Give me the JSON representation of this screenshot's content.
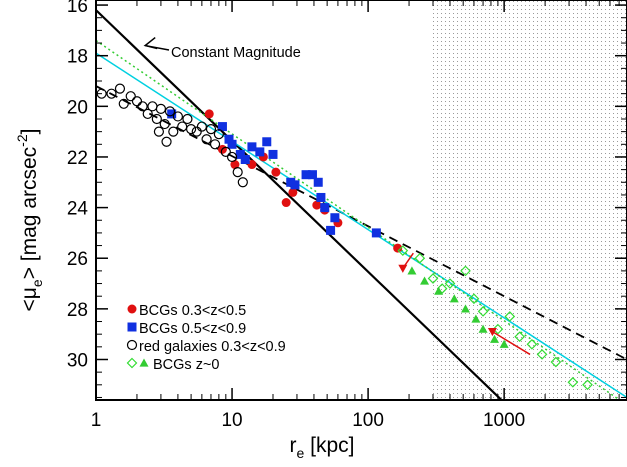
{
  "chart_data": {
    "type": "scatter",
    "xscale": "log",
    "xlim": [
      1,
      8000
    ],
    "ylim": [
      31.6,
      15.8
    ],
    "y_inverted": true,
    "xlabel_main": "r",
    "xlabel_sub": "e",
    "xlabel_rest": " [kpc]",
    "ylabel_pre": "<μ",
    "ylabel_sub": "e",
    "ylabel_mid": "> [mag arcsec",
    "ylabel_sup": "-2",
    "ylabel_post": "]",
    "x_ticks": [
      {
        "value": 1,
        "label": "1"
      },
      {
        "value": 10,
        "label": "10"
      },
      {
        "value": 100,
        "label": "100"
      },
      {
        "value": 1000,
        "label": "1000"
      }
    ],
    "y_ticks": [
      {
        "value": 16,
        "label": "16"
      },
      {
        "value": 18,
        "label": "18"
      },
      {
        "value": 20,
        "label": "20"
      },
      {
        "value": 22,
        "label": "22"
      },
      {
        "value": 24,
        "label": "24"
      },
      {
        "value": 26,
        "label": "26"
      },
      {
        "value": 28,
        "label": "28"
      },
      {
        "value": 30,
        "label": "30"
      }
    ],
    "shaded_region": {
      "x_from": 300,
      "x_to": 8000
    },
    "annotation": {
      "text": "Constant Magnitude",
      "arrow_tip": [
        2.3,
        17.6
      ]
    },
    "lines": [
      {
        "name": "constant-magnitude",
        "color": "#000000",
        "style": "solid",
        "x": [
          1,
          1000
        ],
        "y": [
          16.2,
          31.7
        ]
      },
      {
        "name": "red-galaxies-fit",
        "color": "#000000",
        "style": "dashed",
        "x": [
          1,
          8000
        ],
        "y": [
          19.2,
          30.0
        ]
      },
      {
        "name": "bcg-fit-cyan",
        "color": "#00d0e0",
        "style": "solid",
        "x": [
          1,
          8000
        ],
        "y": [
          17.9,
          31.5
        ]
      },
      {
        "name": "bcg-fit-green",
        "color": "#33cc33",
        "style": "dotted",
        "x": [
          1,
          8000
        ],
        "y": [
          17.4,
          31.8
        ]
      }
    ],
    "series": [
      {
        "name": "BCGs 0.3<z<0.5",
        "marker": "circle-filled",
        "color": "#e01010",
        "points": [
          [
            6.8,
            20.3
          ],
          [
            8.5,
            21.7
          ],
          [
            10.5,
            22.3
          ],
          [
            14,
            22.3
          ],
          [
            17,
            22.0
          ],
          [
            21,
            22.6
          ],
          [
            25,
            23.8
          ],
          [
            28,
            23.4
          ],
          [
            42,
            23.9
          ],
          [
            48,
            24.1
          ],
          [
            60,
            24.6
          ],
          [
            165,
            25.6
          ]
        ]
      },
      {
        "name": "BCGs 0.5<z<0.9",
        "marker": "square-filled",
        "color": "#1030e0",
        "points": [
          [
            3.6,
            20.3
          ],
          [
            8.5,
            20.8
          ],
          [
            9.5,
            21.3
          ],
          [
            10,
            21.5
          ],
          [
            11.5,
            21.9
          ],
          [
            12.5,
            22.1
          ],
          [
            14,
            21.6
          ],
          [
            16,
            21.8
          ],
          [
            18,
            21.4
          ],
          [
            20,
            21.9
          ],
          [
            27,
            23.0
          ],
          [
            29,
            23.1
          ],
          [
            35,
            22.7
          ],
          [
            39,
            22.7
          ],
          [
            43,
            23.0
          ],
          [
            45,
            23.6
          ],
          [
            48,
            24.0
          ],
          [
            53,
            24.9
          ],
          [
            57,
            24.4
          ],
          [
            115,
            25.0
          ]
        ]
      },
      {
        "name": "red galaxies 0.3<z<0.9",
        "marker": "circle-open",
        "color": "#000000",
        "points": [
          [
            1.1,
            19.5
          ],
          [
            1.3,
            19.5
          ],
          [
            1.5,
            19.3
          ],
          [
            1.6,
            19.9
          ],
          [
            1.8,
            19.6
          ],
          [
            2.0,
            19.8
          ],
          [
            2.2,
            20.0
          ],
          [
            2.4,
            20.3
          ],
          [
            2.6,
            20.0
          ],
          [
            2.8,
            20.5
          ],
          [
            3.0,
            20.1
          ],
          [
            3.2,
            20.7
          ],
          [
            3.5,
            20.2
          ],
          [
            3.7,
            21.0
          ],
          [
            4.0,
            20.4
          ],
          [
            4.3,
            20.8
          ],
          [
            4.7,
            20.5
          ],
          [
            5.0,
            20.9
          ],
          [
            5.5,
            21.0
          ],
          [
            6.0,
            20.8
          ],
          [
            6.5,
            21.3
          ],
          [
            7.0,
            20.9
          ],
          [
            7.5,
            21.5
          ],
          [
            8.0,
            21.1
          ],
          [
            9.0,
            21.8
          ],
          [
            10.0,
            22.0
          ],
          [
            11.0,
            22.6
          ],
          [
            12.0,
            23.0
          ],
          [
            3.3,
            21.4
          ],
          [
            2.9,
            21.0
          ]
        ]
      },
      {
        "name": "BCGs z~0",
        "marker": "diamond-open",
        "color": "#33dd33",
        "points": [
          [
            180,
            25.7
          ],
          [
            240,
            26.0
          ],
          [
            300,
            26.8
          ],
          [
            350,
            27.2
          ],
          [
            400,
            27.0
          ],
          [
            520,
            26.5
          ],
          [
            600,
            27.6
          ],
          [
            700,
            28.1
          ],
          [
            900,
            28.8
          ],
          [
            1100,
            28.3
          ],
          [
            1300,
            29.1
          ],
          [
            1600,
            29.4
          ],
          [
            1900,
            29.8
          ],
          [
            2400,
            30.1
          ],
          [
            3200,
            30.9
          ],
          [
            4100,
            31.0
          ]
        ]
      },
      {
        "name": "BCGs z~0 (filled)",
        "marker": "triangle-filled",
        "color": "#33cc33",
        "points": [
          [
            210,
            26.5
          ],
          [
            260,
            26.9
          ],
          [
            330,
            27.3
          ],
          [
            430,
            27.6
          ],
          [
            520,
            28.0
          ],
          [
            620,
            28.4
          ],
          [
            700,
            28.8
          ],
          [
            850,
            29.2
          ],
          [
            1000,
            29.4
          ]
        ]
      },
      {
        "name": "red-down-triangles",
        "marker": "triangle-down-filled",
        "color": "#e01010",
        "points": [
          [
            180,
            26.4
          ],
          [
            820,
            28.9
          ]
        ]
      }
    ],
    "legend": {
      "placement": "bottom-left",
      "entries": [
        {
          "text": "BCGs 0.3<z<0.5",
          "symbols": [
            "circle-filled"
          ],
          "colors": [
            "#e01010"
          ]
        },
        {
          "text": "BCGs 0.5<z<0.9",
          "symbols": [
            "square-filled"
          ],
          "colors": [
            "#1030e0"
          ]
        },
        {
          "text": "red galaxies 0.3<z<0.9",
          "symbols": [
            "circle-open"
          ],
          "colors": [
            "#000000"
          ]
        },
        {
          "text": "BCGs z~0",
          "symbols": [
            "diamond-open",
            "triangle-filled"
          ],
          "colors": [
            "#33dd33",
            "#33cc33"
          ]
        }
      ]
    }
  }
}
